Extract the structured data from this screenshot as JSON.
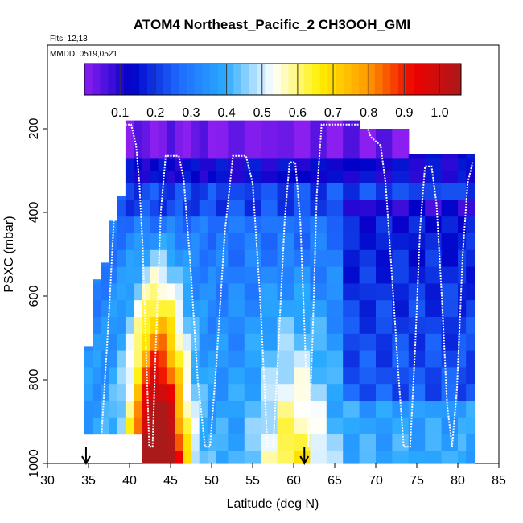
{
  "chart_data": {
    "type": "heatmap",
    "title": "ATOM4 Northeast_Pacific_2 CH3OOH_GMI",
    "flights_label": "Flts: 12,13",
    "date_label": "MMDD: 0519,0521",
    "xlabel": "Latitude (deg N)",
    "ylabel": "PSXC (mbar)",
    "xlim": [
      30,
      85
    ],
    "ylim": [
      1000,
      0
    ],
    "x_ticks": [
      "30",
      "35",
      "40",
      "45",
      "50",
      "55",
      "60",
      "65",
      "70",
      "75",
      "80",
      "85"
    ],
    "y_ticks": [
      "200",
      "400",
      "600",
      "800",
      "1000"
    ],
    "colorbar": {
      "ticks": [
        "0.1",
        "0.2",
        "0.3",
        "0.4",
        "0.5",
        "0.6",
        "0.7",
        "0.8",
        "0.9",
        "1.0"
      ],
      "range": [
        0,
        1.06
      ],
      "stops": [
        "#8B1FF0",
        "#0000C8",
        "#1E6BFF",
        "#2AAAFF",
        "#FFFFFF",
        "#FFF000",
        "#FF9A00",
        "#EE0000",
        "#AA1A1A"
      ]
    },
    "arrows_lat": [
      34.7,
      61.3
    ],
    "pressure_levels": [
      180,
      270,
      300,
      330,
      370,
      410,
      450,
      490,
      530,
      570,
      610,
      650,
      690,
      730,
      770,
      810,
      850,
      890,
      930,
      970,
      1000
    ],
    "column_starts_lat": [
      34.5,
      35.5,
      36.5,
      37.5,
      38.5,
      39.5,
      40.5,
      41.5,
      42.5,
      43.5,
      44.5,
      45.5,
      46.5,
      47.5,
      48.5,
      49.5,
      50.5,
      52,
      54,
      56,
      58,
      60,
      62,
      64,
      66,
      68,
      70,
      72,
      74,
      76,
      78,
      80,
      81,
      82
    ],
    "column_lat_ranges": [
      {
        "lat_start": 34.5,
        "lat_end": 35.5,
        "top": 720
      },
      {
        "lat_start": 35.5,
        "lat_end": 36.5,
        "top": 560
      },
      {
        "lat_start": 36.5,
        "lat_end": 37.5,
        "top": 520
      },
      {
        "lat_start": 37.5,
        "lat_end": 38.5,
        "top": 420
      },
      {
        "lat_start": 38.5,
        "lat_end": 39.5,
        "top": 360
      },
      {
        "lat_start": 39.5,
        "lat_end": 69.0,
        "top": 170
      },
      {
        "lat_start": 69.0,
        "lat_end": 75.0,
        "top": 200
      },
      {
        "lat_start": 75.0,
        "lat_end": 82.0,
        "top": 260
      }
    ],
    "blank_region": {
      "lat_start": 35,
      "lat_end": 41.5,
      "p_top": 945
    },
    "flight_track": [
      [
        36.5,
        960
      ],
      [
        37.0,
        800
      ],
      [
        37.5,
        640
      ],
      [
        38.2,
        380
      ],
      [
        39.0,
        190
      ],
      [
        40.2,
        190
      ],
      [
        40.8,
        240
      ],
      [
        41.2,
        330
      ],
      [
        41.6,
        480
      ],
      [
        42.0,
        720
      ],
      [
        42.4,
        960
      ],
      [
        42.8,
        960
      ],
      [
        43.2,
        720
      ],
      [
        43.8,
        400
      ],
      [
        44.4,
        265
      ],
      [
        46.0,
        265
      ],
      [
        46.6,
        320
      ],
      [
        47.4,
        520
      ],
      [
        48.3,
        800
      ],
      [
        49.2,
        960
      ],
      [
        49.8,
        960
      ],
      [
        50.6,
        760
      ],
      [
        51.6,
        450
      ],
      [
        52.6,
        265
      ],
      [
        54.2,
        265
      ],
      [
        55.0,
        330
      ],
      [
        55.9,
        600
      ],
      [
        56.8,
        960
      ],
      [
        57.5,
        960
      ],
      [
        58.2,
        700
      ],
      [
        58.9,
        420
      ],
      [
        59.5,
        280
      ],
      [
        60.2,
        280
      ],
      [
        60.8,
        420
      ],
      [
        61.4,
        720
      ],
      [
        61.8,
        960
      ],
      [
        62.3,
        700
      ],
      [
        62.8,
        360
      ],
      [
        63.4,
        190
      ],
      [
        68.8,
        190
      ],
      [
        69.4,
        220
      ],
      [
        70.6,
        240
      ],
      [
        71.2,
        330
      ],
      [
        72.0,
        560
      ],
      [
        72.8,
        800
      ],
      [
        73.4,
        960
      ],
      [
        74.2,
        960
      ],
      [
        74.8,
        720
      ],
      [
        75.4,
        440
      ],
      [
        76.0,
        290
      ],
      [
        76.8,
        290
      ],
      [
        77.4,
        380
      ],
      [
        78.1,
        620
      ],
      [
        78.7,
        860
      ],
      [
        79.3,
        960
      ],
      [
        79.9,
        820
      ],
      [
        80.6,
        500
      ],
      [
        81.2,
        330
      ],
      [
        81.8,
        280
      ]
    ]
  }
}
